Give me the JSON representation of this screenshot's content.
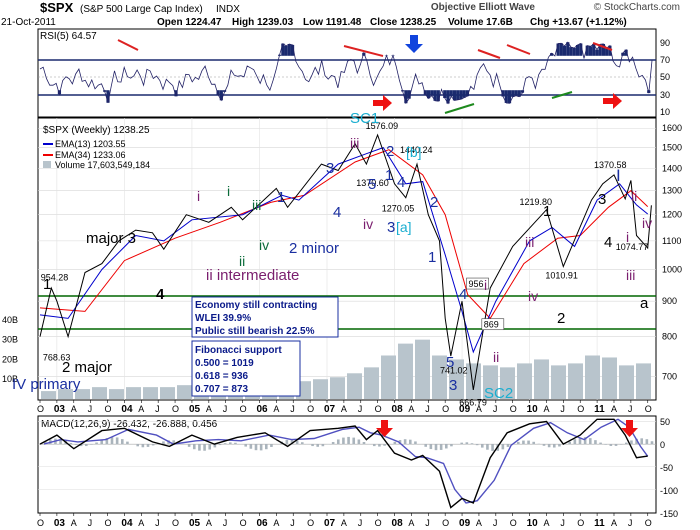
{
  "header": {
    "symbol": "$SPX",
    "name": "(S&P 500 Large Cap Index)",
    "exchange": "INDX",
    "date": "21-Oct-2011",
    "open": "Open 1224.47",
    "high": "High 1239.03",
    "low": "Low 1191.48",
    "close": "Close 1238.25",
    "volume": "Volume 17.6B",
    "chg": "Chg +13.67 (+1.12%)",
    "watermark": "Objective Elliott Wave",
    "credit": "© StockCharts.com"
  },
  "colors": {
    "price": "#000000",
    "ema13": "#0000cc",
    "ema34": "#ee0000",
    "volume": "#b8c4cc",
    "support": "#006600",
    "wave_blue": "#1a2fa0",
    "wave_black": "#000000",
    "wave_purple": "#7a1e6e",
    "wave_green": "#0b6b3a",
    "sc_cyan": "#1aaed0",
    "divergence_red": "#dd2222",
    "divergence_green": "#1e8a1e",
    "arrow_red": "#ee1111",
    "arrow_blue": "#1144dd",
    "rsi_line": "#222266",
    "rsi_fill": "#1a2a6e"
  },
  "rsi_panel": {
    "label": "RSI(5) 64.57",
    "ticks": [
      "90",
      "70",
      "50",
      "30",
      "10"
    ]
  },
  "legend": {
    "title": "$SPX (Weekly) 1238.25",
    "ema13": "EMA(13) 1203.55",
    "ema34": "EMA(34) 1233.06",
    "volume": "Volume 17,603,549,184"
  },
  "macd_panel": {
    "label": "MACD(12,26,9) -26.432, -26.888, 0.456",
    "ticks": [
      "50",
      "0",
      "-50",
      "-100",
      "-150"
    ]
  },
  "info_box": {
    "line1": "Economy still contracting",
    "line2": "WLEI 39.9%",
    "line3": "Public still bearish 22.5%"
  },
  "fib_box": {
    "title": "Fibonacci support",
    "line1": "0.500 = 1019",
    "line2": "0.618 = 936",
    "line3": "0.707 = 873"
  },
  "price_ticks": [
    "1600",
    "1500",
    "1400",
    "1300",
    "1200",
    "1100",
    "1000",
    "900",
    "800",
    "700"
  ],
  "volume_ticks": [
    "40B",
    "30B",
    "20B",
    "10B"
  ],
  "x_ticks": [
    "O",
    "03",
    "A",
    "J",
    "O",
    "04",
    "A",
    "J",
    "O",
    "05",
    "A",
    "J",
    "O",
    "06",
    "A",
    "J",
    "O",
    "07",
    "A",
    "J",
    "O",
    "08",
    "A",
    "J",
    "O",
    "09",
    "A",
    "J",
    "O",
    "10",
    "A",
    "J",
    "O",
    "11",
    "A",
    "J",
    "O"
  ],
  "annotations": [
    {
      "text": "1",
      "color": "black",
      "size": 15,
      "weight": "normal"
    },
    {
      "text": "major 3",
      "color": "black",
      "size": 15,
      "weight": "normal"
    },
    {
      "text": "4",
      "color": "black",
      "size": 15,
      "weight": "bold"
    },
    {
      "text": "2 major",
      "color": "black",
      "size": 15,
      "weight": "normal"
    },
    {
      "text": "IV primary",
      "color": "blue",
      "size": 15,
      "weight": "normal"
    },
    {
      "text": "i",
      "color": "purple",
      "size": 14,
      "weight": "normal"
    },
    {
      "text": "i",
      "color": "green",
      "size": 14,
      "weight": "normal"
    },
    {
      "text": "ii",
      "color": "green",
      "size": 14,
      "weight": "normal"
    },
    {
      "text": "iii",
      "color": "green",
      "size": 14,
      "weight": "normal"
    },
    {
      "text": "iv",
      "color": "green",
      "size": 14,
      "weight": "normal"
    },
    {
      "text": "1",
      "color": "blue",
      "size": 15,
      "weight": "normal"
    },
    {
      "text": "ii intermediate",
      "color": "purple",
      "size": 15,
      "weight": "normal"
    },
    {
      "text": "2 minor",
      "color": "blue",
      "size": 15,
      "weight": "normal"
    },
    {
      "text": "3",
      "color": "blue",
      "size": 15,
      "weight": "normal"
    },
    {
      "text": "4",
      "color": "blue",
      "size": 15,
      "weight": "normal"
    },
    {
      "text": "5",
      "color": "blue",
      "size": 15,
      "weight": "normal"
    },
    {
      "text": "iii",
      "color": "purple",
      "size": 14,
      "weight": "normal"
    },
    {
      "text": "iv",
      "color": "purple",
      "size": 14,
      "weight": "normal"
    },
    {
      "text": "SC1",
      "color": "cyan",
      "size": 15,
      "weight": "normal"
    },
    {
      "text": "2",
      "color": "blue",
      "size": 15,
      "weight": "normal"
    },
    {
      "text": "[b]",
      "color": "cyan",
      "size": 14,
      "weight": "normal"
    },
    {
      "text": "1",
      "color": "blue",
      "size": 15,
      "weight": "normal"
    },
    {
      "text": "4",
      "color": "blue",
      "size": 15,
      "weight": "normal"
    },
    {
      "text": "2",
      "color": "blue",
      "size": 15,
      "weight": "normal"
    },
    {
      "text": "3",
      "color": "blue",
      "size": 15,
      "weight": "normal"
    },
    {
      "text": "[a]",
      "color": "cyan",
      "size": 14,
      "weight": "normal"
    },
    {
      "text": "1",
      "color": "blue",
      "size": 15,
      "weight": "normal"
    },
    {
      "text": "4",
      "color": "blue",
      "size": 15,
      "weight": "normal"
    },
    {
      "text": "i",
      "color": "purple",
      "size": 14,
      "weight": "normal"
    },
    {
      "text": "ii",
      "color": "purple",
      "size": 14,
      "weight": "normal"
    },
    {
      "text": "5",
      "color": "blue",
      "size": 15,
      "weight": "normal"
    },
    {
      "text": "3",
      "color": "blue",
      "size": 15,
      "weight": "normal"
    },
    {
      "text": "SC2",
      "color": "cyan",
      "size": 15,
      "weight": "normal"
    },
    {
      "text": "iii",
      "color": "purple",
      "size": 14,
      "weight": "normal"
    },
    {
      "text": "iv",
      "color": "purple",
      "size": 14,
      "weight": "normal"
    },
    {
      "text": "1",
      "color": "black",
      "size": 15,
      "weight": "normal"
    },
    {
      "text": "2",
      "color": "black",
      "size": 15,
      "weight": "normal"
    },
    {
      "text": "I",
      "color": "blue",
      "size": 17,
      "weight": "normal"
    },
    {
      "text": "3",
      "color": "black",
      "size": 15,
      "weight": "normal"
    },
    {
      "text": "4",
      "color": "black",
      "size": 15,
      "weight": "normal"
    },
    {
      "text": "i",
      "color": "purple",
      "size": 14,
      "weight": "normal"
    },
    {
      "text": "ii",
      "color": "purple",
      "size": 14,
      "weight": "normal"
    },
    {
      "text": "iii",
      "color": "purple",
      "size": 14,
      "weight": "normal"
    },
    {
      "text": "iv",
      "color": "purple",
      "size": 14,
      "weight": "normal"
    },
    {
      "text": "a",
      "color": "black",
      "size": 15,
      "weight": "normal"
    }
  ],
  "chart_data": {
    "type": "line",
    "title": "$SPX (S&P 500 Large Cap Index) INDX",
    "x_range": [
      "2002-10",
      "2011-10"
    ],
    "ylim": [
      650,
      1650
    ],
    "y_scale": "log",
    "grid": true,
    "series": [
      {
        "name": "$SPX (Weekly)",
        "points": [
          [
            "2002-10",
            800
          ],
          [
            "2002-12",
            940
          ],
          [
            "2003-01",
            900
          ],
          [
            "2003-03",
            800
          ],
          [
            "2003-06",
            990
          ],
          [
            "2003-09",
            1020
          ],
          [
            "2003-12",
            1100
          ],
          [
            "2004-03",
            1140
          ],
          [
            "2004-06",
            1130
          ],
          [
            "2004-08",
            1070
          ],
          [
            "2004-12",
            1200
          ],
          [
            "2005-04",
            1170
          ],
          [
            "2005-08",
            1230
          ],
          [
            "2005-10",
            1180
          ],
          [
            "2006-04",
            1310
          ],
          [
            "2006-06",
            1230
          ],
          [
            "2006-12",
            1420
          ],
          [
            "2007-03",
            1390
          ],
          [
            "2007-06",
            1520
          ],
          [
            "2007-08",
            1420
          ],
          [
            "2007-10",
            1565
          ],
          [
            "2008-01",
            1330
          ],
          [
            "2008-03",
            1270
          ],
          [
            "2008-05",
            1420
          ],
          [
            "2008-07",
            1200
          ],
          [
            "2008-09",
            1100
          ],
          [
            "2008-10",
            850
          ],
          [
            "2008-11",
            750
          ],
          [
            "2009-01",
            900
          ],
          [
            "2009-03",
            670
          ],
          [
            "2009-06",
            940
          ],
          [
            "2009-10",
            1080
          ],
          [
            "2010-04",
            1220
          ],
          [
            "2010-07",
            1010
          ],
          [
            "2010-12",
            1260
          ],
          [
            "2011-02",
            1330
          ],
          [
            "2011-04",
            1370
          ],
          [
            "2011-06",
            1265
          ],
          [
            "2011-07",
            1345
          ],
          [
            "2011-08",
            1120
          ],
          [
            "2011-10",
            1074
          ],
          [
            "2011-10-21",
            1238
          ]
        ]
      },
      {
        "name": "EMA(13)",
        "points": [
          [
            "2002-10",
            860
          ],
          [
            "2003-03",
            850
          ],
          [
            "2003-09",
            1000
          ],
          [
            "2004-03",
            1120
          ],
          [
            "2004-08",
            1100
          ],
          [
            "2005-01",
            1180
          ],
          [
            "2005-10",
            1200
          ],
          [
            "2006-05",
            1280
          ],
          [
            "2006-08",
            1260
          ],
          [
            "2007-03",
            1420
          ],
          [
            "2007-08",
            1470
          ],
          [
            "2007-11",
            1500
          ],
          [
            "2008-03",
            1330
          ],
          [
            "2008-06",
            1340
          ],
          [
            "2008-10",
            1050
          ],
          [
            "2009-01",
            870
          ],
          [
            "2009-03",
            760
          ],
          [
            "2009-07",
            900
          ],
          [
            "2010-01",
            1100
          ],
          [
            "2010-05",
            1150
          ],
          [
            "2010-09",
            1080
          ],
          [
            "2011-01",
            1260
          ],
          [
            "2011-05",
            1330
          ],
          [
            "2011-08",
            1240
          ],
          [
            "2011-10",
            1203
          ]
        ]
      },
      {
        "name": "EMA(34)",
        "points": [
          [
            "2002-10",
            880
          ],
          [
            "2003-06",
            870
          ],
          [
            "2004-01",
            1030
          ],
          [
            "2004-10",
            1110
          ],
          [
            "2005-06",
            1170
          ],
          [
            "2006-03",
            1250
          ],
          [
            "2006-09",
            1280
          ],
          [
            "2007-06",
            1430
          ],
          [
            "2007-12",
            1490
          ],
          [
            "2008-06",
            1370
          ],
          [
            "2008-10",
            1200
          ],
          [
            "2009-02",
            920
          ],
          [
            "2009-06",
            850
          ],
          [
            "2009-12",
            1020
          ],
          [
            "2010-06",
            1110
          ],
          [
            "2010-10",
            1120
          ],
          [
            "2011-03",
            1230
          ],
          [
            "2011-07",
            1300
          ],
          [
            "2011-10",
            1233
          ]
        ]
      }
    ],
    "volume": {
      "name": "Volume",
      "approx_values_B": [
        4,
        5,
        5,
        6,
        5,
        6,
        6,
        6,
        7,
        7,
        7,
        8,
        8,
        8,
        9,
        9,
        10,
        11,
        13,
        16,
        22,
        28,
        30,
        22,
        20,
        18,
        17,
        16,
        18,
        20,
        17,
        18,
        22,
        21,
        17,
        18
      ]
    },
    "labeled_levels": [
      {
        "label": "954.28",
        "y": 954.28
      },
      {
        "label": "768.63",
        "y": 768.63
      },
      {
        "label": "1576.09",
        "y": 1576.09
      },
      {
        "label": "1370.60",
        "y": 1370.6
      },
      {
        "label": "1440.24",
        "y": 1440.24
      },
      {
        "label": "1270.05",
        "y": 1270.05
      },
      {
        "label": "956",
        "y": 956
      },
      {
        "label": "869",
        "y": 869
      },
      {
        "label": "741.02",
        "y": 741.02
      },
      {
        "label": "666.79",
        "y": 666.79
      },
      {
        "label": "1219.80",
        "y": 1219.8
      },
      {
        "label": "1010.91",
        "y": 1010.91
      },
      {
        "label": "1370.58",
        "y": 1370.58
      },
      {
        "label": "1074.77",
        "y": 1074.77
      }
    ],
    "support_lines": [
      {
        "y": 1000
      },
      {
        "y": 868
      }
    ],
    "rsi": {
      "name": "RSI(5)",
      "last": 64.57,
      "ylim": [
        0,
        100
      ],
      "bands": [
        70,
        50,
        30
      ]
    },
    "macd": {
      "name": "MACD(12,26,9)",
      "values": [
        -26.432,
        -26.888,
        0.456
      ],
      "ylim": [
        -150,
        60
      ]
    }
  }
}
